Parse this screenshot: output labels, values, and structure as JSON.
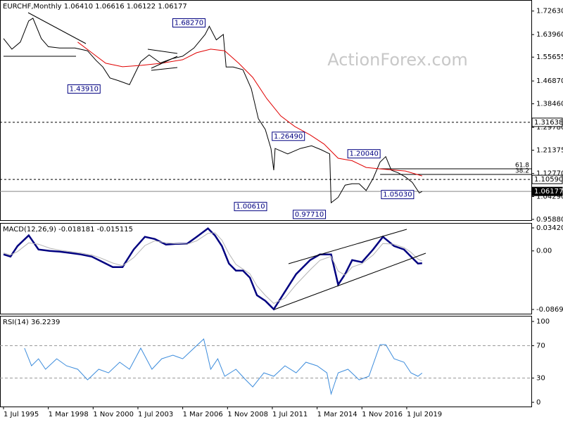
{
  "chart_data": [
    {
      "type": "line",
      "title": "EURCHF,Monthly 1.06410 1.06616 1.06122 1.06177",
      "watermark": "ActionForex.com",
      "xlim": [
        "1995-07",
        "2026-12"
      ],
      "ylim": [
        0.956,
        1.767
      ],
      "yticks": [
        {
          "value": 1.7263,
          "label": "1.72630"
        },
        {
          "value": 1.6396,
          "label": "1.63960"
        },
        1.55655,
        {
          "value": 1.4687,
          "label": "1.46870"
        },
        {
          "value": 1.3846,
          "label": "1.38460"
        },
        {
          "value": 1.2978,
          "label": "1.29780"
        },
        1.21375,
        {
          "value": 1.1277,
          "label": "1.12770"
        },
        {
          "value": 1.0429,
          "label": "1.04290"
        },
        {
          "value": 0.9588,
          "label": "0.95880"
        }
      ],
      "series": [
        {
          "color": "#000000",
          "x": [
            "1995-07",
            "1996-01",
            "1996-07",
            "1997-01",
            "1997-04",
            "1997-10",
            "1998-03",
            "1998-11",
            "1999-10",
            "2000-07",
            "2001-01",
            "2001-06",
            "2001-11",
            "2002-05",
            "2003-01",
            "2003-09",
            "2004-03",
            "2004-11",
            "2005-07",
            "2006-03",
            "2006-11",
            "2007-07",
            "2007-10",
            "2008-03",
            "2008-08",
            "2008-10",
            "2009-03",
            "2009-10",
            "2010-04",
            "2010-09",
            "2011-02",
            "2011-06",
            "2011-08",
            "2011-09",
            "2012-06",
            "2013-03",
            "2013-11",
            "2014-06",
            "2014-12",
            "2015-01",
            "2015-06",
            "2015-11",
            "2016-04",
            "2016-09",
            "2017-02",
            "2017-07",
            "2017-12",
            "2018-04",
            "2018-08",
            "2019-01",
            "2019-06",
            "2019-11",
            "2020-04",
            "2020-06"
          ],
          "values": [
            1.625,
            1.586,
            1.612,
            1.69,
            1.7,
            1.625,
            1.595,
            1.59,
            1.59,
            1.58,
            1.545,
            1.52,
            1.48,
            1.47,
            1.455,
            1.54,
            1.565,
            1.535,
            1.55,
            1.56,
            1.59,
            1.64,
            1.67,
            1.62,
            1.64,
            1.52,
            1.52,
            1.51,
            1.44,
            1.33,
            1.29,
            1.22,
            1.14,
            1.22,
            1.2,
            1.22,
            1.23,
            1.215,
            1.2,
            1.02,
            1.04,
            1.085,
            1.09,
            1.09,
            1.065,
            1.11,
            1.17,
            1.19,
            1.14,
            1.13,
            1.115,
            1.095,
            1.056,
            1.0617
          ]
        },
        {
          "color": "#e00000",
          "x": [
            "1999-12",
            "2000-10",
            "2001-08",
            "2002-08",
            "2003-09",
            "2004-12",
            "2006-03",
            "2007-01",
            "2007-11",
            "2008-09",
            "2009-07",
            "2010-05",
            "2011-03",
            "2012-01",
            "2012-11",
            "2013-10",
            "2014-08",
            "2015-06",
            "2016-04",
            "2017-02",
            "2017-12",
            "2019-06",
            "2020-06"
          ],
          "values": [
            1.612,
            1.573,
            1.534,
            1.521,
            1.526,
            1.534,
            1.547,
            1.573,
            1.586,
            1.58,
            1.534,
            1.482,
            1.404,
            1.34,
            1.301,
            1.27,
            1.236,
            1.184,
            1.175,
            1.15,
            1.145,
            1.137,
            1.119
          ]
        }
      ],
      "levels": [
        {
          "value": 1.31638,
          "dashed": true
        },
        {
          "value": 1.1059,
          "label": "1.10590",
          "dashed": true
        },
        {
          "value": 1.06177,
          "dashed": false,
          "highlight": true
        }
      ],
      "fib": [
        {
          "ratio": 61.8,
          "price": 1.145,
          "start": "2017-12"
        },
        {
          "ratio": 38.2,
          "price": 1.1245,
          "start": "2017-12"
        }
      ],
      "annotations": [
        {
          "value": 1.6827,
          "label": "1.68270",
          "x": "2007-07"
        },
        {
          "value": 1.4391,
          "label": "1.43910",
          "x": "2001-04"
        },
        {
          "value": 1.2649,
          "label": "1.26490",
          "x": "2013-06"
        },
        {
          "value": 1.0061,
          "label": "1.00610",
          "x": "2011-03"
        },
        {
          "value": 0.9771,
          "label": "0.97710",
          "x": "2014-09"
        },
        {
          "value": 1.2004,
          "label": "1.20040",
          "x": "2017-12"
        },
        {
          "value": 1.0503,
          "label": "1.05030",
          "x": "2019-12"
        }
      ]
    },
    {
      "type": "line",
      "title": "MACD(12,26,9) -0.018181 -0.015115",
      "xlim": [
        "1995-07",
        "2026-12"
      ],
      "ylim": [
        -0.0932,
        0.0415
      ],
      "yticks": [
        0.034203,
        {
          "value": 0,
          "label": "0.00"
        },
        -0.086933
      ],
      "series": [
        {
          "color": "#000080",
          "x": [
            "1995-07",
            "1995-12",
            "1996-05",
            "1997-01",
            "1997-08",
            "1998-04",
            "1998-11",
            "1999-07",
            "2000-02",
            "2000-10",
            "2001-05",
            "2002-01",
            "2002-08",
            "2003-04",
            "2003-12",
            "2004-07",
            "2005-03",
            "2005-10",
            "2006-06",
            "2007-01",
            "2007-09",
            "2008-02",
            "2008-07",
            "2008-12",
            "2009-05",
            "2009-10",
            "2010-03",
            "2010-08",
            "2011-02",
            "2011-08",
            "2012-04",
            "2012-12",
            "2013-10",
            "2014-05",
            "2015-01",
            "2015-06",
            "2015-11",
            "2016-04",
            "2016-11",
            "2017-07",
            "2018-02",
            "2018-10",
            "2019-05",
            "2019-10",
            "2020-03",
            "2020-06"
          ],
          "values": [
            -0.0052,
            -0.0084,
            0.0073,
            0.023,
            0.0021,
            0,
            -0.001,
            -0.0031,
            -0.0052,
            -0.0084,
            -0.0157,
            -0.024,
            -0.024,
            0.0021,
            0.0209,
            0.0177,
            0.0094,
            0.0104,
            0.0104,
            0.0209,
            0.0334,
            0.023,
            0.0073,
            -0.0188,
            -0.0292,
            -0.0292,
            -0.0397,
            -0.0658,
            -0.0741,
            -0.0866,
            -0.0605,
            -0.0344,
            -0.0136,
            -0.0052,
            -0.0052,
            -0.0501,
            -0.0344,
            -0.0136,
            -0.0167,
            0.0021,
            0.0209,
            0.0073,
            0.0021,
            -0.0084,
            -0.0188,
            -0.0182
          ]
        },
        {
          "color": "#b4b4b4",
          "x": [
            "1995-07",
            "1995-12",
            "1996-05",
            "1997-01",
            "1997-08",
            "1998-04",
            "1998-11",
            "1999-07",
            "2000-02",
            "2000-10",
            "2001-05",
            "2002-01",
            "2002-08",
            "2003-04",
            "2003-12",
            "2004-07",
            "2005-03",
            "2005-10",
            "2006-06",
            "2007-01",
            "2007-09",
            "2008-02",
            "2008-07",
            "2008-12",
            "2009-05",
            "2009-10",
            "2010-03",
            "2010-08",
            "2011-02",
            "2011-08",
            "2012-04",
            "2012-12",
            "2013-10",
            "2014-05",
            "2015-01",
            "2015-06",
            "2015-11",
            "2016-04",
            "2016-11",
            "2017-07",
            "2018-02",
            "2018-10",
            "2019-05",
            "2019-10",
            "2020-03",
            "2020-06"
          ],
          "values": [
            -0.003,
            -0.006,
            -0.001,
            0.012,
            0.01,
            0.004,
            0.001,
            -0.001,
            -0.003,
            -0.006,
            -0.011,
            -0.018,
            -0.022,
            -0.01,
            0.008,
            0.015,
            0.012,
            0.011,
            0.01,
            0.015,
            0.026,
            0.027,
            0.016,
            -0.004,
            -0.02,
            -0.027,
            -0.034,
            -0.052,
            -0.066,
            -0.078,
            -0.07,
            -0.05,
            -0.028,
            -0.014,
            -0.008,
            -0.03,
            -0.036,
            -0.024,
            -0.019,
            -0.006,
            0.011,
            0.01,
            0.005,
            -0.002,
            -0.012,
            -0.0151
          ]
        }
      ]
    },
    {
      "type": "line",
      "title": "RSI(14) 36.2239",
      "xlim": [
        "1995-07",
        "2026-12"
      ],
      "ylim": [
        -5.2,
        107
      ],
      "yticks": [
        100,
        70,
        30,
        0
      ],
      "guide_lines": [
        70,
        30
      ],
      "xticks": [
        {
          "value": "1995-07-01",
          "label": "1 Jul 1995"
        },
        {
          "value": "1998-03-01",
          "label": "1 Mar 1998"
        },
        {
          "value": "2000-11-01",
          "label": "1 Nov 2000"
        },
        {
          "value": "2003-07-01",
          "label": "1 Jul 2003"
        },
        {
          "value": "2006-03-01",
          "label": "1 Mar 2006"
        },
        {
          "value": "2008-11-01",
          "label": "1 Nov 2008"
        },
        {
          "value": "2011-07-01",
          "label": "1 Jul 2011"
        },
        {
          "value": "2014-03-01",
          "label": "1 Mar 2014"
        },
        {
          "value": "2016-11-01",
          "label": "1 Nov 2016"
        },
        {
          "value": "2019-07-01",
          "label": "1 Jul 2019"
        }
      ],
      "series": [
        {
          "color": "#3c8cdc",
          "x": [
            "1996-10",
            "1997-03",
            "1997-08",
            "1998-01",
            "1998-09",
            "1999-04",
            "1999-12",
            "2000-07",
            "2001-03",
            "2001-10",
            "2002-06",
            "2003-01",
            "2003-09",
            "2004-05",
            "2004-12",
            "2005-08",
            "2006-03",
            "2006-11",
            "2007-06",
            "2007-11",
            "2008-04",
            "2008-09",
            "2009-05",
            "2009-12",
            "2010-05",
            "2011-01",
            "2011-08",
            "2012-04",
            "2012-12",
            "2013-07",
            "2014-03",
            "2014-10",
            "2015-01",
            "2015-06",
            "2016-01",
            "2016-09",
            "2017-04",
            "2017-12",
            "2018-04",
            "2018-10",
            "2019-05",
            "2019-10",
            "2020-03",
            "2020-06"
          ],
          "values": [
            67,
            45.2,
            53.9,
            40.9,
            53.9,
            45.2,
            40.9,
            27.8,
            40.9,
            36.5,
            49.6,
            40.9,
            67,
            40.9,
            53.9,
            58.3,
            53.9,
            67,
            78.3,
            40.9,
            53.9,
            32.2,
            40.9,
            27.8,
            19.1,
            36.5,
            32.2,
            45.2,
            36.5,
            49.6,
            45.2,
            36.5,
            10.4,
            36.5,
            40.9,
            27.8,
            32.2,
            71.3,
            71.3,
            53.9,
            49.6,
            36.5,
            32.2,
            36.2
          ]
        }
      ]
    }
  ]
}
